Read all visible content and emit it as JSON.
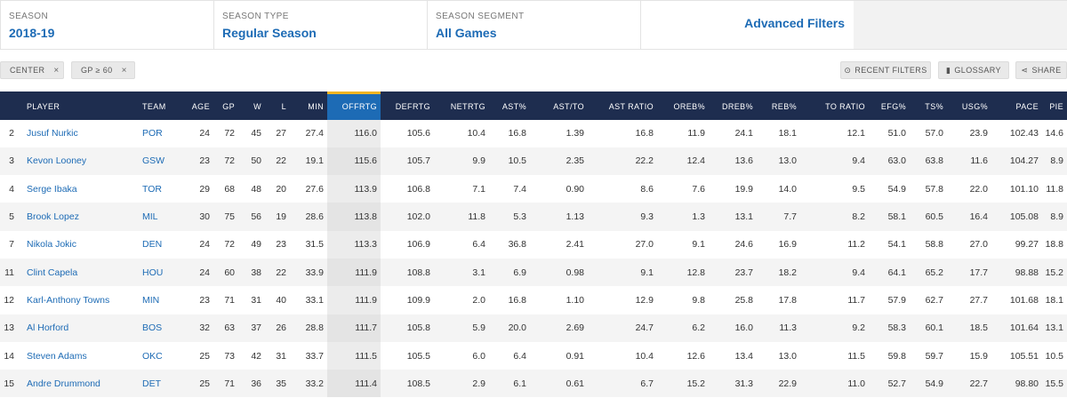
{
  "filters": {
    "season": {
      "label": "SEASON",
      "value": "2018-19"
    },
    "season_type": {
      "label": "SEASON TYPE",
      "value": "Regular Season"
    },
    "season_segment": {
      "label": "SEASON SEGMENT",
      "value": "All Games"
    },
    "advanced": {
      "value": "Advanced Filters"
    }
  },
  "chips": [
    {
      "label": "CENTER",
      "x": "×"
    },
    {
      "label": "GP ≥ 60",
      "x": "×"
    }
  ],
  "tools": {
    "recent": {
      "icon": "⊙",
      "label": "RECENT FILTERS"
    },
    "glossary": {
      "icon": "▮",
      "label": "GLOSSARY"
    },
    "share": {
      "icon": "⋖",
      "label": "SHARE"
    }
  },
  "columns": [
    "",
    "PLAYER",
    "TEAM",
    "AGE",
    "GP",
    "W",
    "L",
    "MIN",
    "OFFRTG",
    "DEFRTG",
    "NETRTG",
    "AST%",
    "AST/TO",
    "AST RATIO",
    "OREB%",
    "DREB%",
    "REB%",
    "TO RATIO",
    "EFG%",
    "TS%",
    "USG%",
    "PACE",
    "PIE"
  ],
  "rows": [
    [
      "2",
      "Jusuf Nurkic",
      "POR",
      "24",
      "72",
      "45",
      "27",
      "27.4",
      "116.0",
      "105.6",
      "10.4",
      "16.8",
      "1.39",
      "16.8",
      "11.9",
      "24.1",
      "18.1",
      "12.1",
      "51.0",
      "57.0",
      "23.9",
      "102.43",
      "14.6"
    ],
    [
      "3",
      "Kevon Looney",
      "GSW",
      "23",
      "72",
      "50",
      "22",
      "19.1",
      "115.6",
      "105.7",
      "9.9",
      "10.5",
      "2.35",
      "22.2",
      "12.4",
      "13.6",
      "13.0",
      "9.4",
      "63.0",
      "63.8",
      "11.6",
      "104.27",
      "8.9"
    ],
    [
      "4",
      "Serge Ibaka",
      "TOR",
      "29",
      "68",
      "48",
      "20",
      "27.6",
      "113.9",
      "106.8",
      "7.1",
      "7.4",
      "0.90",
      "8.6",
      "7.6",
      "19.9",
      "14.0",
      "9.5",
      "54.9",
      "57.8",
      "22.0",
      "101.10",
      "11.8"
    ],
    [
      "5",
      "Brook Lopez",
      "MIL",
      "30",
      "75",
      "56",
      "19",
      "28.6",
      "113.8",
      "102.0",
      "11.8",
      "5.3",
      "1.13",
      "9.3",
      "1.3",
      "13.1",
      "7.7",
      "8.2",
      "58.1",
      "60.5",
      "16.4",
      "105.08",
      "8.9"
    ],
    [
      "7",
      "Nikola Jokic",
      "DEN",
      "24",
      "72",
      "49",
      "23",
      "31.5",
      "113.3",
      "106.9",
      "6.4",
      "36.8",
      "2.41",
      "27.0",
      "9.1",
      "24.6",
      "16.9",
      "11.2",
      "54.1",
      "58.8",
      "27.0",
      "99.27",
      "18.8"
    ],
    [
      "11",
      "Clint Capela",
      "HOU",
      "24",
      "60",
      "38",
      "22",
      "33.9",
      "111.9",
      "108.8",
      "3.1",
      "6.9",
      "0.98",
      "9.1",
      "12.8",
      "23.7",
      "18.2",
      "9.4",
      "64.1",
      "65.2",
      "17.7",
      "98.88",
      "15.2"
    ],
    [
      "12",
      "Karl-Anthony Towns",
      "MIN",
      "23",
      "71",
      "31",
      "40",
      "33.1",
      "111.9",
      "109.9",
      "2.0",
      "16.8",
      "1.10",
      "12.9",
      "9.8",
      "25.8",
      "17.8",
      "11.7",
      "57.9",
      "62.7",
      "27.7",
      "101.68",
      "18.1"
    ],
    [
      "13",
      "Al Horford",
      "BOS",
      "32",
      "63",
      "37",
      "26",
      "28.8",
      "111.7",
      "105.8",
      "5.9",
      "20.0",
      "2.69",
      "24.7",
      "6.2",
      "16.0",
      "11.3",
      "9.2",
      "58.3",
      "60.1",
      "18.5",
      "101.64",
      "13.1"
    ],
    [
      "14",
      "Steven Adams",
      "OKC",
      "25",
      "73",
      "42",
      "31",
      "33.7",
      "111.5",
      "105.5",
      "6.0",
      "6.4",
      "0.91",
      "10.4",
      "12.6",
      "13.4",
      "13.0",
      "11.5",
      "59.8",
      "59.7",
      "15.9",
      "105.51",
      "10.5"
    ],
    [
      "15",
      "Andre Drummond",
      "DET",
      "25",
      "71",
      "36",
      "35",
      "33.2",
      "111.4",
      "108.5",
      "2.9",
      "6.1",
      "0.61",
      "6.7",
      "15.2",
      "31.3",
      "22.9",
      "11.0",
      "52.7",
      "54.9",
      "22.7",
      "98.80",
      "15.5"
    ]
  ]
}
